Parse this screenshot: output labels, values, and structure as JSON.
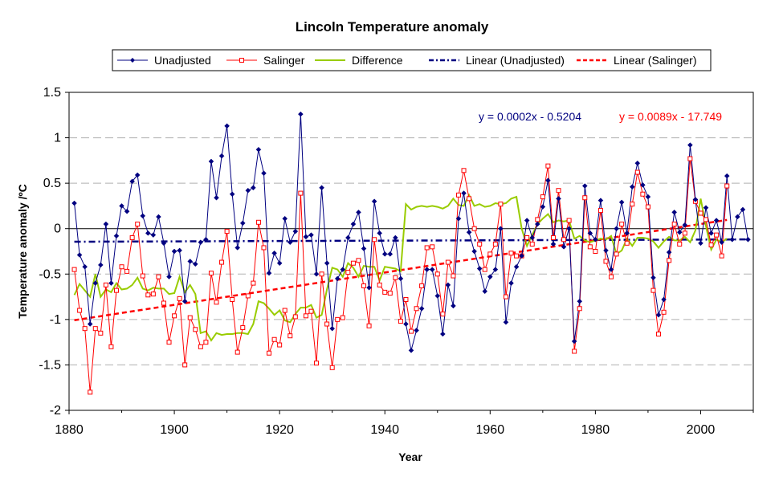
{
  "chart_data": {
    "type": "line",
    "title": "Lincoln Temperature anomaly",
    "xlabel": "Year",
    "ylabel": "Temperature anomaly /ºC",
    "xlim": [
      1880,
      2010
    ],
    "ylim": [
      -2,
      1.5
    ],
    "x_ticks": [
      1880,
      1900,
      1920,
      1940,
      1960,
      1980,
      2000
    ],
    "y_ticks": [
      -2,
      -1.5,
      -1,
      -0.5,
      0,
      0.5,
      1,
      1.5
    ],
    "grid": "horizontal dashed",
    "legend_position": "top",
    "series": [
      {
        "name": "Unadjusted",
        "color": "#000080",
        "marker": "diamond",
        "x": [
          1881,
          1882,
          1883,
          1884,
          1885,
          1886,
          1887,
          1888,
          1889,
          1890,
          1891,
          1892,
          1893,
          1894,
          1895,
          1896,
          1897,
          1898,
          1899,
          1900,
          1901,
          1902,
          1903,
          1904,
          1905,
          1906,
          1907,
          1908,
          1909,
          1910,
          1911,
          1912,
          1913,
          1914,
          1915,
          1916,
          1917,
          1918,
          1919,
          1920,
          1921,
          1922,
          1923,
          1924,
          1925,
          1926,
          1927,
          1928,
          1929,
          1930,
          1931,
          1932,
          1933,
          1934,
          1935,
          1936,
          1937,
          1938,
          1939,
          1940,
          1941,
          1942,
          1943,
          1944,
          1945,
          1946,
          1947,
          1948,
          1949,
          1950,
          1951,
          1952,
          1953,
          1954,
          1955,
          1956,
          1957,
          1958,
          1959,
          1960,
          1961,
          1962,
          1963,
          1964,
          1965,
          1966,
          1967,
          1968,
          1969,
          1970,
          1971,
          1972,
          1973,
          1974,
          1975,
          1976,
          1977,
          1978,
          1979,
          1980,
          1981,
          1982,
          1983,
          1984,
          1985,
          1986,
          1987,
          1988,
          1989,
          1990,
          1991,
          1992,
          1993,
          1994,
          1995,
          1996,
          1997,
          1998,
          1999,
          2000,
          2001,
          2002,
          2003,
          2004,
          2005,
          2006,
          2007,
          2008,
          2009
        ],
        "values": [
          0.28,
          -0.29,
          -0.42,
          -1.05,
          -0.6,
          -0.4,
          0.05,
          -0.6,
          -0.08,
          0.25,
          0.19,
          0.52,
          0.59,
          0.14,
          -0.05,
          -0.07,
          0.13,
          -0.16,
          -0.53,
          -0.25,
          -0.24,
          -0.8,
          -0.36,
          -0.39,
          -0.15,
          -0.12,
          0.74,
          0.34,
          0.8,
          1.13,
          0.38,
          -0.21,
          0.06,
          0.42,
          0.45,
          0.87,
          0.61,
          -0.49,
          -0.27,
          -0.38,
          0.11,
          -0.15,
          -0.03,
          1.26,
          -0.09,
          -0.07,
          -0.5,
          0.45,
          -0.38,
          -1.1,
          -0.55,
          -0.45,
          -0.1,
          0.05,
          0.18,
          -0.22,
          -0.65,
          0.3,
          -0.05,
          -0.28,
          -0.28,
          -0.1,
          -0.55,
          -1.05,
          -1.34,
          -1.12,
          -0.88,
          -0.45,
          -0.45,
          -0.74,
          -1.16,
          -0.62,
          -0.85,
          0.11,
          0.39,
          -0.04,
          -0.25,
          -0.44,
          -0.69,
          -0.53,
          -0.45,
          0.0,
          -1.03,
          -0.6,
          -0.42,
          -0.3,
          0.09,
          -0.1,
          0.05,
          0.24,
          0.53,
          -0.17,
          0.33,
          -0.2,
          0.0,
          -1.24,
          -0.8,
          0.47,
          -0.05,
          -0.12,
          0.31,
          -0.24,
          -0.45,
          0.0,
          0.29,
          -0.05,
          0.46,
          0.72,
          0.48,
          0.35,
          -0.54,
          -0.95,
          -0.78,
          -0.26,
          0.18,
          -0.04,
          0.04,
          0.92,
          0.32,
          -0.16,
          0.23,
          -0.05,
          0.09,
          -0.15,
          0.58,
          -0.12,
          0.13,
          0.21,
          -0.12
        ]
      },
      {
        "name": "Salinger",
        "color": "#ff0000",
        "marker": "square",
        "x": [
          1881,
          1882,
          1883,
          1884,
          1885,
          1886,
          1887,
          1888,
          1889,
          1890,
          1891,
          1892,
          1893,
          1894,
          1895,
          1896,
          1897,
          1898,
          1899,
          1900,
          1901,
          1902,
          1903,
          1904,
          1905,
          1906,
          1907,
          1908,
          1909,
          1910,
          1911,
          1912,
          1913,
          1914,
          1915,
          1916,
          1917,
          1918,
          1919,
          1920,
          1921,
          1922,
          1923,
          1924,
          1925,
          1926,
          1927,
          1928,
          1929,
          1930,
          1931,
          1932,
          1933,
          1934,
          1935,
          1936,
          1937,
          1938,
          1939,
          1940,
          1941,
          1942,
          1943,
          1944,
          1945,
          1946,
          1947,
          1948,
          1949,
          1950,
          1951,
          1952,
          1953,
          1954,
          1955,
          1956,
          1957,
          1958,
          1959,
          1960,
          1961,
          1962,
          1963,
          1964,
          1965,
          1966,
          1967,
          1968,
          1969,
          1970,
          1971,
          1972,
          1973,
          1974,
          1975,
          1976,
          1977,
          1978,
          1979,
          1980,
          1981,
          1982,
          1983,
          1984,
          1985,
          1986,
          1987,
          1988,
          1989,
          1990,
          1991,
          1992,
          1993,
          1994,
          1995,
          1996,
          1997,
          1998,
          1999,
          2000,
          2001,
          2002,
          2003,
          2004,
          2005
        ],
        "values": [
          -0.45,
          -0.9,
          -1.1,
          -1.8,
          -1.1,
          -1.15,
          -0.62,
          -1.3,
          -0.68,
          -0.42,
          -0.47,
          -0.1,
          0.05,
          -0.52,
          -0.73,
          -0.72,
          -0.53,
          -0.82,
          -1.25,
          -0.96,
          -0.77,
          -1.5,
          -0.98,
          -1.11,
          -1.3,
          -1.25,
          -0.49,
          -0.81,
          -0.37,
          -0.03,
          -0.78,
          -1.36,
          -1.09,
          -0.74,
          -0.6,
          0.07,
          -0.21,
          -1.37,
          -1.22,
          -1.28,
          -0.9,
          -1.18,
          -0.97,
          0.39,
          -0.96,
          -0.91,
          -1.48,
          -0.5,
          -1.05,
          -1.53,
          -1.0,
          -0.98,
          -0.48,
          -0.38,
          -0.35,
          -0.63,
          -1.07,
          -0.12,
          -0.62,
          -0.7,
          -0.71,
          -0.54,
          -1.02,
          -0.78,
          -1.13,
          -0.88,
          -0.63,
          -0.21,
          -0.2,
          -0.5,
          -0.94,
          -0.37,
          -0.52,
          0.37,
          0.64,
          0.33,
          0.0,
          -0.17,
          -0.45,
          -0.28,
          -0.17,
          0.27,
          -0.75,
          -0.27,
          -0.3,
          -0.3,
          -0.1,
          -0.17,
          0.1,
          0.35,
          0.69,
          -0.1,
          0.42,
          -0.12,
          0.09,
          -1.35,
          -0.88,
          0.34,
          -0.2,
          -0.25,
          0.2,
          -0.36,
          -0.53,
          -0.28,
          0.05,
          -0.16,
          0.27,
          0.62,
          0.38,
          0.24,
          -0.68,
          -1.16,
          -0.92,
          -0.35,
          0.05,
          -0.17,
          -0.05,
          0.77,
          0.3,
          0.17,
          0.1,
          -0.18,
          -0.07,
          -0.3,
          0.47
        ]
      },
      {
        "name": "Difference",
        "color": "#99cc00",
        "marker": "none",
        "x": [
          1881,
          1882,
          1883,
          1884,
          1885,
          1886,
          1887,
          1888,
          1889,
          1890,
          1891,
          1892,
          1893,
          1894,
          1895,
          1896,
          1897,
          1898,
          1899,
          1900,
          1901,
          1902,
          1903,
          1904,
          1905,
          1906,
          1907,
          1908,
          1909,
          1910,
          1911,
          1912,
          1913,
          1914,
          1915,
          1916,
          1917,
          1918,
          1919,
          1920,
          1921,
          1922,
          1923,
          1924,
          1925,
          1926,
          1927,
          1928,
          1929,
          1930,
          1931,
          1932,
          1933,
          1934,
          1935,
          1936,
          1937,
          1938,
          1939,
          1940,
          1941,
          1942,
          1943,
          1944,
          1945,
          1946,
          1947,
          1948,
          1949,
          1950,
          1951,
          1952,
          1953,
          1954,
          1955,
          1956,
          1957,
          1958,
          1959,
          1960,
          1961,
          1962,
          1963,
          1964,
          1965,
          1966,
          1967,
          1968,
          1969,
          1970,
          1971,
          1972,
          1973,
          1974,
          1975,
          1976,
          1977,
          1978,
          1979,
          1980,
          1981,
          1982,
          1983,
          1984,
          1985,
          1986,
          1987,
          1988,
          1989,
          1990,
          1991,
          1992,
          1993,
          1994,
          1995,
          1996,
          1997,
          1998,
          1999,
          2000,
          2001,
          2002,
          2003,
          2004,
          2005
        ],
        "values": [
          -0.73,
          -0.61,
          -0.68,
          -0.75,
          -0.5,
          -0.75,
          -0.67,
          -0.7,
          -0.6,
          -0.67,
          -0.66,
          -0.62,
          -0.54,
          -0.66,
          -0.68,
          -0.65,
          -0.66,
          -0.66,
          -0.72,
          -0.71,
          -0.53,
          -0.7,
          -0.62,
          -0.72,
          -1.15,
          -1.13,
          -1.23,
          -1.15,
          -1.17,
          -1.16,
          -1.16,
          -1.15,
          -1.15,
          -1.16,
          -1.05,
          -0.8,
          -0.82,
          -0.88,
          -0.95,
          -0.9,
          -1.01,
          -1.03,
          -0.94,
          -0.87,
          -0.87,
          -0.84,
          -0.98,
          -0.95,
          -0.67,
          -0.43,
          -0.45,
          -0.53,
          -0.38,
          -0.43,
          -0.53,
          -0.41,
          -0.42,
          -0.42,
          -0.57,
          -0.42,
          -0.43,
          -0.44,
          -0.47,
          0.27,
          0.21,
          0.24,
          0.25,
          0.24,
          0.25,
          0.24,
          0.22,
          0.25,
          0.33,
          0.26,
          0.25,
          0.37,
          0.25,
          0.27,
          0.24,
          0.25,
          0.28,
          0.27,
          0.28,
          0.33,
          0.35,
          0.0,
          -0.19,
          -0.07,
          0.05,
          0.11,
          0.16,
          0.07,
          0.09,
          0.08,
          0.09,
          -0.11,
          -0.08,
          -0.13,
          -0.15,
          -0.13,
          -0.11,
          -0.12,
          -0.08,
          -0.28,
          -0.24,
          -0.11,
          -0.19,
          -0.1,
          -0.1,
          -0.11,
          -0.14,
          -0.21,
          -0.14,
          -0.09,
          -0.13,
          -0.13,
          -0.09,
          -0.15,
          -0.02,
          0.33,
          0.03,
          -0.23,
          -0.12,
          -0.15,
          -0.11
        ]
      }
    ],
    "trendlines": [
      {
        "name": "Linear (Unadjusted)",
        "color": "#000080",
        "style": "dash-dot",
        "slope": 0.0002,
        "intercept": -0.5204,
        "x_range": [
          1881,
          2009
        ],
        "equation": "y = 0.0002x - 0.5204"
      },
      {
        "name": "Linear (Salinger)",
        "color": "#ff0000",
        "style": "dashed",
        "slope": 0.0089,
        "intercept": -17.749,
        "x_range": [
          1881,
          2005
        ],
        "equation": "y = 0.0089x - 17.749"
      }
    ],
    "legend": [
      {
        "label": "Unadjusted",
        "color": "#000080",
        "kind": "line-diamond"
      },
      {
        "label": "Salinger",
        "color": "#ff0000",
        "kind": "line-square"
      },
      {
        "label": "Difference",
        "color": "#99cc00",
        "kind": "line"
      },
      {
        "label": "Linear (Unadjusted)",
        "color": "#000080",
        "kind": "dash-dot"
      },
      {
        "label": "Linear (Salinger)",
        "color": "#ff0000",
        "kind": "dashed"
      }
    ]
  }
}
